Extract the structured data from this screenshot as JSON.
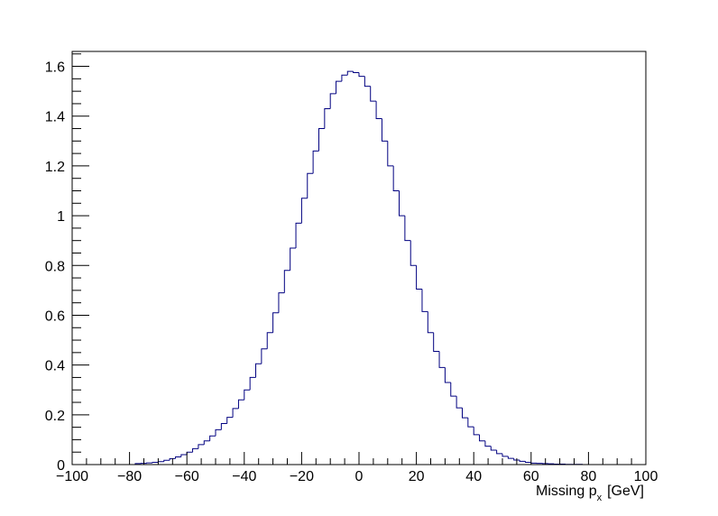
{
  "colors": {
    "background": "#ffffff",
    "frame": "#000000",
    "histogram_line": "#000080"
  },
  "chart_data": {
    "type": "area",
    "style": "step histogram",
    "title": "",
    "xlabel": "Missing p_x [GeV]",
    "xlabel_parts": {
      "main": "Missing p",
      "subscript": "x",
      "unit": "[GeV]"
    },
    "ylabel": "",
    "xlim": [
      -100,
      100
    ],
    "ylim": [
      0,
      1.66
    ],
    "x_tick_labels": [
      "−100",
      "−80",
      "−60",
      "−40",
      "−20",
      "0",
      "20",
      "40",
      "60",
      "80",
      "100"
    ],
    "y_tick_labels": [
      "0",
      "0.2",
      "0.4",
      "0.6",
      "0.8",
      "1",
      "1.2",
      "1.4",
      "1.6"
    ],
    "grid": false,
    "legend": "none",
    "bin_width": 2,
    "series": [
      {
        "x_bin_low": [
          -78,
          -76,
          -74,
          -72,
          -70,
          -68,
          -66,
          -64,
          -62,
          -60,
          -58,
          -56,
          -54,
          -52,
          -50,
          -48,
          -46,
          -44,
          -42,
          -40,
          -38,
          -36,
          -34,
          -32,
          -30,
          -28,
          -26,
          -24,
          -22,
          -20,
          -18,
          -16,
          -14,
          -12,
          -10,
          -8,
          -6,
          -4,
          -2,
          0,
          2,
          4,
          6,
          8,
          10,
          12,
          14,
          16,
          18,
          20,
          22,
          24,
          26,
          28,
          30,
          32,
          34,
          36,
          38,
          40,
          42,
          44,
          46,
          48,
          50,
          52,
          54,
          56,
          58,
          60,
          62,
          64,
          66,
          68,
          70,
          72,
          74,
          76
        ],
        "values": [
          0.004,
          0.005,
          0.007,
          0.009,
          0.012,
          0.017,
          0.024,
          0.031,
          0.04,
          0.05,
          0.064,
          0.08,
          0.095,
          0.115,
          0.14,
          0.165,
          0.19,
          0.225,
          0.26,
          0.3,
          0.35,
          0.405,
          0.465,
          0.53,
          0.61,
          0.69,
          0.78,
          0.87,
          0.97,
          1.07,
          1.17,
          1.26,
          1.35,
          1.43,
          1.49,
          1.54,
          1.565,
          1.58,
          1.575,
          1.56,
          1.52,
          1.46,
          1.39,
          1.3,
          1.2,
          1.1,
          1.0,
          0.9,
          0.8,
          0.705,
          0.615,
          0.53,
          0.455,
          0.39,
          0.33,
          0.275,
          0.228,
          0.188,
          0.152,
          0.12,
          0.095,
          0.074,
          0.058,
          0.044,
          0.033,
          0.025,
          0.018,
          0.013,
          0.009,
          0.006,
          0.005,
          0.004,
          0.003,
          0.002,
          0.002,
          0.001,
          0.001,
          0.001
        ]
      }
    ]
  }
}
